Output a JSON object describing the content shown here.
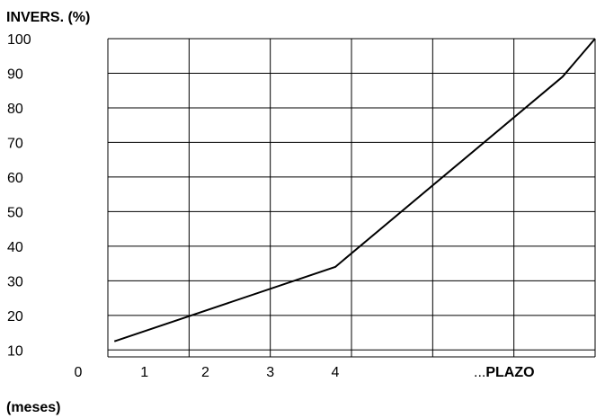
{
  "chart_data": {
    "type": "line",
    "ylabel": "INVERS. (%)",
    "xlabel": "(meses)",
    "origin_label": "0",
    "x_tick_labels": [
      "1",
      "2",
      "3",
      "4",
      "...",
      "PLAZO"
    ],
    "y_ticks": [
      10,
      20,
      30,
      40,
      50,
      60,
      70,
      80,
      90,
      100
    ],
    "ylim": [
      8,
      100
    ],
    "xlim": [
      0,
      6
    ],
    "grid": true,
    "series": [
      {
        "x": [
          0.08,
          2.8,
          5.6,
          6.0
        ],
        "y": [
          12.5,
          34,
          89,
          100
        ]
      }
    ],
    "line_color": "#000000",
    "grid_color": "#000000"
  }
}
